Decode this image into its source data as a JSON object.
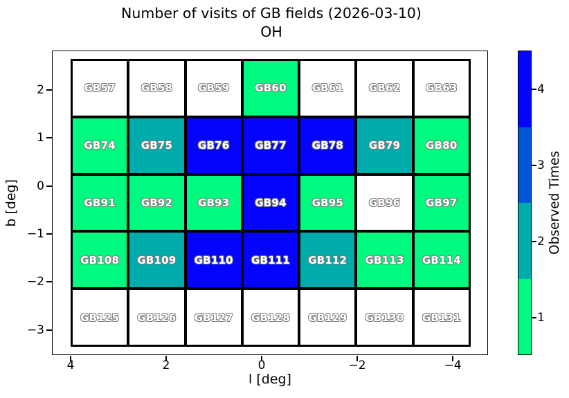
{
  "title": {
    "line1": "Number of visits of GB fields (2026-03-10)",
    "line2": "OH"
  },
  "x_axis": {
    "label": "l [deg]",
    "ticks": [
      "4",
      "2",
      "0",
      "−2",
      "−4"
    ]
  },
  "y_axis": {
    "label": "b [deg]",
    "ticks": [
      "2",
      "1",
      "0",
      "−1",
      "−2",
      "−3"
    ]
  },
  "colorbar": {
    "label": "Observed Times",
    "segments": [
      {
        "value": 4,
        "color": "#0404fc"
      },
      {
        "value": 3,
        "color": "#0056d6"
      },
      {
        "value": 2,
        "color": "#00abab"
      },
      {
        "value": 1,
        "color": "#00f97f"
      }
    ],
    "no_data_color": "#ffffff"
  },
  "chart_data": {
    "type": "heatmap",
    "title": "Number of visits of GB fields (2026-03-10) OH",
    "xlabel": "l [deg]",
    "ylabel": "b [deg]",
    "x_tick_values": [
      4,
      2,
      0,
      -2,
      -4
    ],
    "y_tick_values": [
      2,
      1,
      0,
      -1,
      -2,
      -3
    ],
    "value_label": "Observed Times",
    "value_range": [
      1,
      4
    ],
    "no_data_value": 0,
    "rows": [
      {
        "fields": [
          {
            "name": "GB57",
            "visits": 0
          },
          {
            "name": "GB58",
            "visits": 0
          },
          {
            "name": "GB59",
            "visits": 0
          },
          {
            "name": "GB60",
            "visits": 1
          },
          {
            "name": "GB61",
            "visits": 0
          },
          {
            "name": "GB62",
            "visits": 0
          },
          {
            "name": "GB63",
            "visits": 0
          }
        ]
      },
      {
        "fields": [
          {
            "name": "GB74",
            "visits": 1
          },
          {
            "name": "GB75",
            "visits": 2
          },
          {
            "name": "GB76",
            "visits": 4
          },
          {
            "name": "GB77",
            "visits": 4
          },
          {
            "name": "GB78",
            "visits": 4
          },
          {
            "name": "GB79",
            "visits": 2
          },
          {
            "name": "GB80",
            "visits": 1
          }
        ]
      },
      {
        "fields": [
          {
            "name": "GB91",
            "visits": 1
          },
          {
            "name": "GB92",
            "visits": 1
          },
          {
            "name": "GB93",
            "visits": 1
          },
          {
            "name": "GB94",
            "visits": 4
          },
          {
            "name": "GB95",
            "visits": 1
          },
          {
            "name": "GB96",
            "visits": 0
          },
          {
            "name": "GB97",
            "visits": 1
          }
        ]
      },
      {
        "fields": [
          {
            "name": "GB108",
            "visits": 1
          },
          {
            "name": "GB109",
            "visits": 2
          },
          {
            "name": "GB110",
            "visits": 4
          },
          {
            "name": "GB111",
            "visits": 4
          },
          {
            "name": "GB112",
            "visits": 2
          },
          {
            "name": "GB113",
            "visits": 1
          },
          {
            "name": "GB114",
            "visits": 1
          }
        ]
      },
      {
        "fields": [
          {
            "name": "GB125",
            "visits": 0
          },
          {
            "name": "GB126",
            "visits": 0
          },
          {
            "name": "GB127",
            "visits": 0
          },
          {
            "name": "GB128",
            "visits": 0
          },
          {
            "name": "GB129",
            "visits": 0
          },
          {
            "name": "GB130",
            "visits": 0
          },
          {
            "name": "GB131",
            "visits": 0
          }
        ]
      }
    ]
  }
}
